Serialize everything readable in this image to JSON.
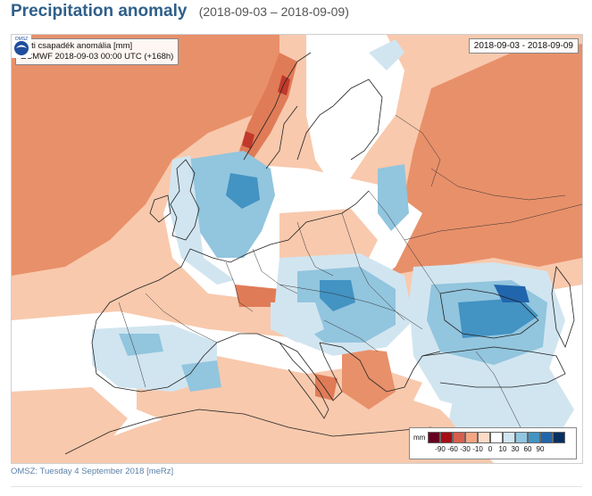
{
  "header": {
    "title": "Precipitation anomaly",
    "date_range": "(2018-09-03 – 2018-09-09)"
  },
  "map": {
    "legend_line1": "Heti csapadék anomália [mm]",
    "legend_line2": "ECMWF 2018-09-03 00:00 UTC (+168h)",
    "date_box": "2018-09-03 - 2018-09-09",
    "logo_text": "OMSZ",
    "colorbar": {
      "unit": "mm",
      "ticks": [
        "-90",
        "-60",
        "-30",
        "-10",
        "0",
        "10",
        "30",
        "60",
        "90"
      ],
      "colors": [
        "#67001f",
        "#a50f15",
        "#d6604d",
        "#f4a582",
        "#fddbc7",
        "#ffffff",
        "#d1e5f0",
        "#92c5de",
        "#4393c3",
        "#2166ac",
        "#053061"
      ]
    },
    "palette": {
      "dry_strong": "#e07b57",
      "dry_moderate": "#f4a582",
      "dry_light": "#f8c9ad",
      "neutral": "#ffffff",
      "wet_light": "#d1e5f0",
      "wet_moderate": "#92c5de",
      "wet_strong": "#4393c3",
      "wet_very_strong": "#2166ac"
    }
  },
  "footer": {
    "text": "OMSZ: Tuesday 4 September 2018  [meRz]"
  }
}
